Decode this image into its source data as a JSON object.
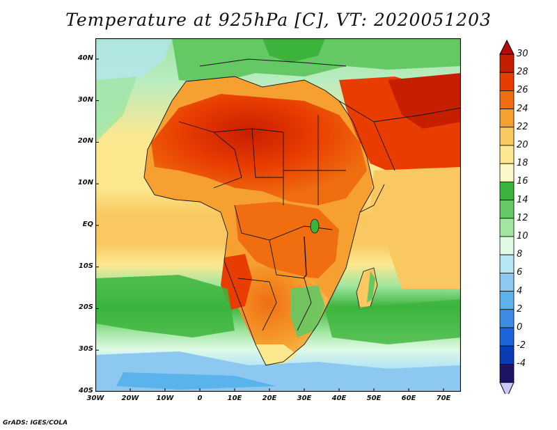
{
  "title": "Temperature at 925hPa [C], VT: 2020051203",
  "credit": "GrADS: IGES/COLA",
  "map": {
    "projection": "latlon",
    "lon_range": [
      -30,
      75
    ],
    "lat_range": [
      -40,
      45
    ],
    "lat_ticks": [
      {
        "value": 40,
        "label": "40N"
      },
      {
        "value": 30,
        "label": "30N"
      },
      {
        "value": 20,
        "label": "20N"
      },
      {
        "value": 10,
        "label": "10N"
      },
      {
        "value": 0,
        "label": "EQ"
      },
      {
        "value": -10,
        "label": "10S"
      },
      {
        "value": -20,
        "label": "20S"
      },
      {
        "value": -30,
        "label": "30S"
      },
      {
        "value": -40,
        "label": "40S"
      }
    ],
    "lon_ticks": [
      {
        "value": -30,
        "label": "30W"
      },
      {
        "value": -20,
        "label": "20W"
      },
      {
        "value": -10,
        "label": "10W"
      },
      {
        "value": 0,
        "label": "0"
      },
      {
        "value": 10,
        "label": "10E"
      },
      {
        "value": 20,
        "label": "20E"
      },
      {
        "value": 30,
        "label": "30E"
      },
      {
        "value": 40,
        "label": "40E"
      },
      {
        "value": 50,
        "label": "50E"
      },
      {
        "value": 60,
        "label": "60E"
      },
      {
        "value": 70,
        "label": "70E"
      }
    ]
  },
  "colorbar": {
    "units": "C",
    "labels": [
      "30",
      "28",
      "26",
      "24",
      "22",
      "20",
      "18",
      "16",
      "14",
      "12",
      "10",
      "8",
      "6",
      "4",
      "2",
      "0",
      "-2",
      "-4"
    ],
    "colors": [
      "#c81e00",
      "#e83c00",
      "#f06e10",
      "#f5a030",
      "#fac860",
      "#fde890",
      "#fdf8c8",
      "#3cb43c",
      "#64c864",
      "#a0e6a0",
      "#e0fae6",
      "#b4e6f5",
      "#8cc8f0",
      "#5ab4eb",
      "#3c8ce6",
      "#1e64dc",
      "#0a3cb4",
      "#1e1464"
    ],
    "top_arrow_color": "#b40a0a",
    "bottom_arrow_color": "#c8c8f0"
  },
  "colors": {
    "ocean_cool": "#a0e6a0",
    "ocean_warm": "#fac860",
    "land_hot": "#e83c00",
    "land_warm": "#f5a030",
    "southern_cold": "#5ab4eb"
  }
}
